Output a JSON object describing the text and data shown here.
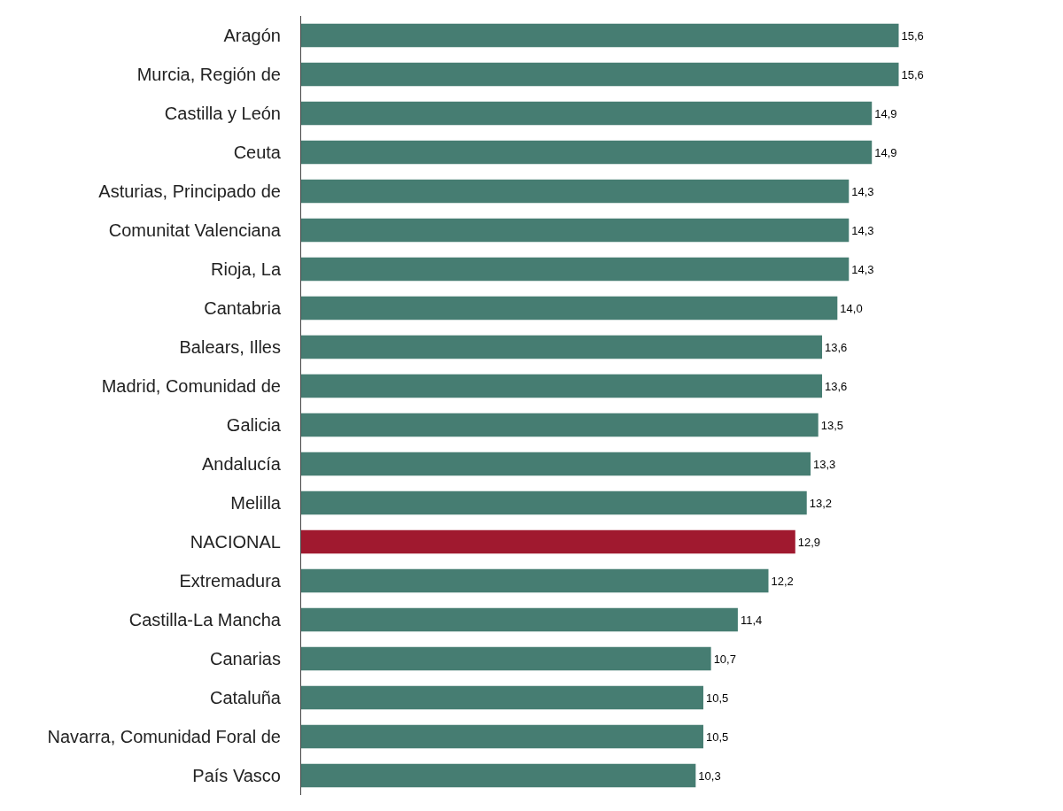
{
  "chart_data": {
    "type": "bar",
    "orientation": "horizontal",
    "categories": [
      "Aragón",
      "Murcia, Región de",
      "Castilla y León",
      "Ceuta",
      "Asturias, Principado de",
      "Comunitat Valenciana",
      "Rioja, La",
      "Cantabria",
      "Balears, Illes",
      "Madrid, Comunidad de",
      "Galicia",
      "Andalucía",
      "Melilla",
      "NACIONAL",
      "Extremadura",
      "Castilla-La Mancha",
      "Canarias",
      "Cataluña",
      "Navarra, Comunidad Foral de",
      "País Vasco"
    ],
    "values": [
      15.6,
      15.6,
      14.9,
      14.9,
      14.3,
      14.3,
      14.3,
      14.0,
      13.6,
      13.6,
      13.5,
      13.3,
      13.2,
      12.9,
      12.2,
      11.4,
      10.7,
      10.5,
      10.5,
      10.3
    ],
    "value_labels": [
      "15,6",
      "15,6",
      "14,9",
      "14,9",
      "14,3",
      "14,3",
      "14,3",
      "14,0",
      "13,6",
      "13,6",
      "13,5",
      "13,3",
      "13,2",
      "12,9",
      "12,2",
      "11,4",
      "10,7",
      "10,5",
      "10,5",
      "10,3"
    ],
    "colors": [
      "#467d72",
      "#467d72",
      "#467d72",
      "#467d72",
      "#467d72",
      "#467d72",
      "#467d72",
      "#467d72",
      "#467d72",
      "#467d72",
      "#467d72",
      "#467d72",
      "#467d72",
      "#a0192f",
      "#467d72",
      "#467d72",
      "#467d72",
      "#467d72",
      "#467d72",
      "#467d72"
    ],
    "tick_labels": "y",
    "grid": false,
    "legend": false
  }
}
